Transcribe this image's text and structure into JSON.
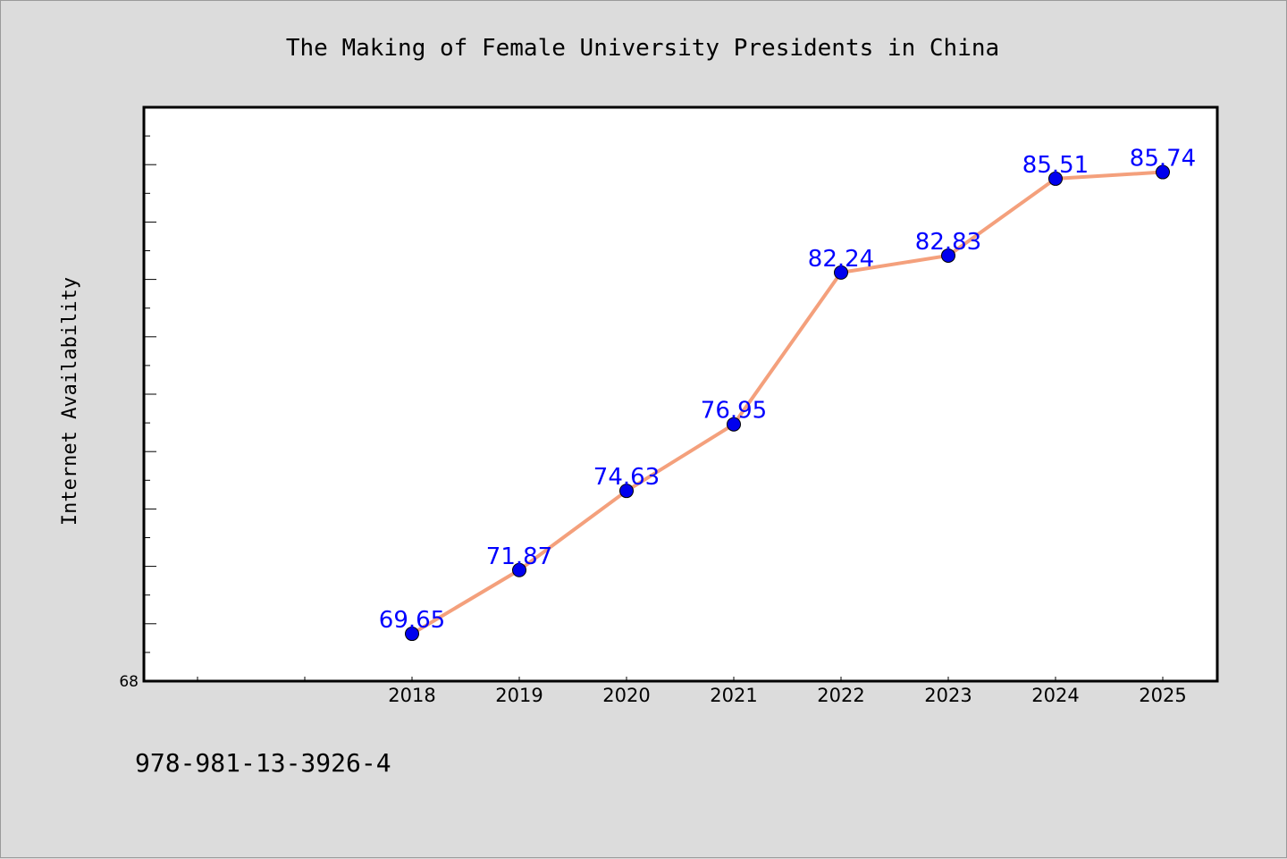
{
  "chart_data": {
    "type": "line",
    "title": "The Making of Female University Presidents in China",
    "xlabel": "",
    "ylabel": "Internet Availability",
    "categories": [
      "2018",
      "2019",
      "2020",
      "2021",
      "2022",
      "2023",
      "2024",
      "2025"
    ],
    "series": [
      {
        "values": [
          69.65,
          71.87,
          74.63,
          76.95,
          82.24,
          82.83,
          85.51,
          85.74
        ],
        "data_labels": [
          "69.65",
          "71.87",
          "74.63",
          "76.95",
          "82.24",
          "82.83",
          "85.51",
          "85.74"
        ],
        "line_color": "#f4a07c",
        "marker_color": "#0000ee"
      }
    ],
    "ylim": [
      68,
      88
    ],
    "y_tick_labels": [
      "68"
    ],
    "grid": false,
    "legend": "none"
  },
  "footer": {
    "isbn": "978-981-13-3926-4"
  },
  "colors": {
    "background": "#dcdcdc",
    "plot_background": "#ffffff",
    "label_color": "#0000ff"
  }
}
